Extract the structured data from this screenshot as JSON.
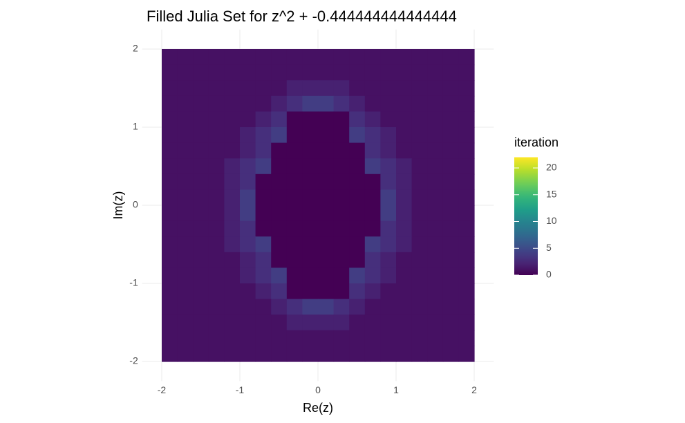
{
  "chart_data": {
    "type": "raster",
    "title": "Filled Julia Set for z^2 + -0.444444444444444",
    "x_label": "Re(z)",
    "y_label": "Im(z)",
    "legend_title": "iteration",
    "colormap": "viridis",
    "xlim": [
      -2.25,
      2.25
    ],
    "ylim": [
      -2.25,
      2.25
    ],
    "xticks": [
      -2,
      -1,
      0,
      1,
      2
    ],
    "yticks": [
      -2,
      -1,
      0,
      1,
      2
    ],
    "clim": [
      0,
      22
    ],
    "cticks": [
      0,
      5,
      10,
      15,
      20
    ],
    "grid": true,
    "x": [
      -1.9,
      -1.7,
      -1.5,
      -1.3,
      -1.1,
      -0.9,
      -0.7,
      -0.5,
      -0.3,
      -0.1,
      0.1,
      0.3,
      0.5,
      0.7,
      0.9,
      1.1,
      1.3,
      1.5,
      1.7,
      1.9
    ],
    "y": [
      1.9,
      1.7,
      1.5,
      1.3,
      1.1,
      0.9,
      0.7,
      0.5,
      0.3,
      0.1,
      -0.1,
      -0.3,
      -0.5,
      -0.7,
      -0.9,
      -1.1,
      -1.3,
      -1.5,
      -1.7,
      -1.9
    ],
    "z": [
      [
        1,
        1,
        1,
        1,
        1,
        1,
        1,
        1,
        1,
        1,
        1,
        1,
        1,
        1,
        1,
        1,
        1,
        1,
        1,
        1
      ],
      [
        1,
        1,
        1,
        1,
        1,
        1,
        1,
        1,
        1,
        1,
        1,
        1,
        1,
        1,
        1,
        1,
        1,
        1,
        1,
        1
      ],
      [
        1,
        1,
        1,
        1,
        1,
        1,
        1,
        1,
        2,
        2,
        2,
        2,
        1,
        1,
        1,
        1,
        1,
        1,
        1,
        1
      ],
      [
        1,
        1,
        1,
        1,
        1,
        1,
        1,
        2,
        3,
        4,
        4,
        3,
        2,
        1,
        1,
        1,
        1,
        1,
        1,
        1
      ],
      [
        1,
        1,
        1,
        1,
        1,
        1,
        2,
        3,
        0,
        0,
        0,
        0,
        3,
        2,
        1,
        1,
        1,
        1,
        1,
        1
      ],
      [
        1,
        1,
        1,
        1,
        1,
        2,
        3,
        4,
        0,
        0,
        0,
        0,
        4,
        3,
        2,
        1,
        1,
        1,
        1,
        1
      ],
      [
        1,
        1,
        1,
        1,
        1,
        2,
        3,
        0,
        0,
        0,
        0,
        0,
        0,
        3,
        2,
        1,
        1,
        1,
        1,
        1
      ],
      [
        1,
        1,
        1,
        1,
        2,
        3,
        4,
        0,
        0,
        0,
        0,
        0,
        0,
        4,
        3,
        2,
        1,
        1,
        1,
        1
      ],
      [
        1,
        1,
        1,
        1,
        2,
        3,
        0,
        0,
        0,
        0,
        0,
        0,
        0,
        0,
        3,
        2,
        1,
        1,
        1,
        1
      ],
      [
        1,
        1,
        1,
        1,
        2,
        4,
        0,
        0,
        0,
        0,
        0,
        0,
        0,
        0,
        4,
        2,
        1,
        1,
        1,
        1
      ],
      [
        1,
        1,
        1,
        1,
        2,
        4,
        0,
        0,
        0,
        0,
        0,
        0,
        0,
        0,
        4,
        2,
        1,
        1,
        1,
        1
      ],
      [
        1,
        1,
        1,
        1,
        2,
        3,
        0,
        0,
        0,
        0,
        0,
        0,
        0,
        0,
        3,
        2,
        1,
        1,
        1,
        1
      ],
      [
        1,
        1,
        1,
        1,
        2,
        3,
        4,
        0,
        0,
        0,
        0,
        0,
        0,
        4,
        3,
        2,
        1,
        1,
        1,
        1
      ],
      [
        1,
        1,
        1,
        1,
        1,
        2,
        3,
        0,
        0,
        0,
        0,
        0,
        0,
        3,
        2,
        1,
        1,
        1,
        1,
        1
      ],
      [
        1,
        1,
        1,
        1,
        1,
        2,
        3,
        4,
        0,
        0,
        0,
        0,
        4,
        3,
        2,
        1,
        1,
        1,
        1,
        1
      ],
      [
        1,
        1,
        1,
        1,
        1,
        1,
        2,
        3,
        0,
        0,
        0,
        0,
        3,
        2,
        1,
        1,
        1,
        1,
        1,
        1
      ],
      [
        1,
        1,
        1,
        1,
        1,
        1,
        1,
        2,
        3,
        4,
        4,
        3,
        2,
        1,
        1,
        1,
        1,
        1,
        1,
        1
      ],
      [
        1,
        1,
        1,
        1,
        1,
        1,
        1,
        1,
        2,
        2,
        2,
        2,
        1,
        1,
        1,
        1,
        1,
        1,
        1,
        1
      ],
      [
        1,
        1,
        1,
        1,
        1,
        1,
        1,
        1,
        1,
        1,
        1,
        1,
        1,
        1,
        1,
        1,
        1,
        1,
        1,
        1
      ],
      [
        1,
        1,
        1,
        1,
        1,
        1,
        1,
        1,
        1,
        1,
        1,
        1,
        1,
        1,
        1,
        1,
        1,
        1,
        1,
        1
      ]
    ]
  }
}
